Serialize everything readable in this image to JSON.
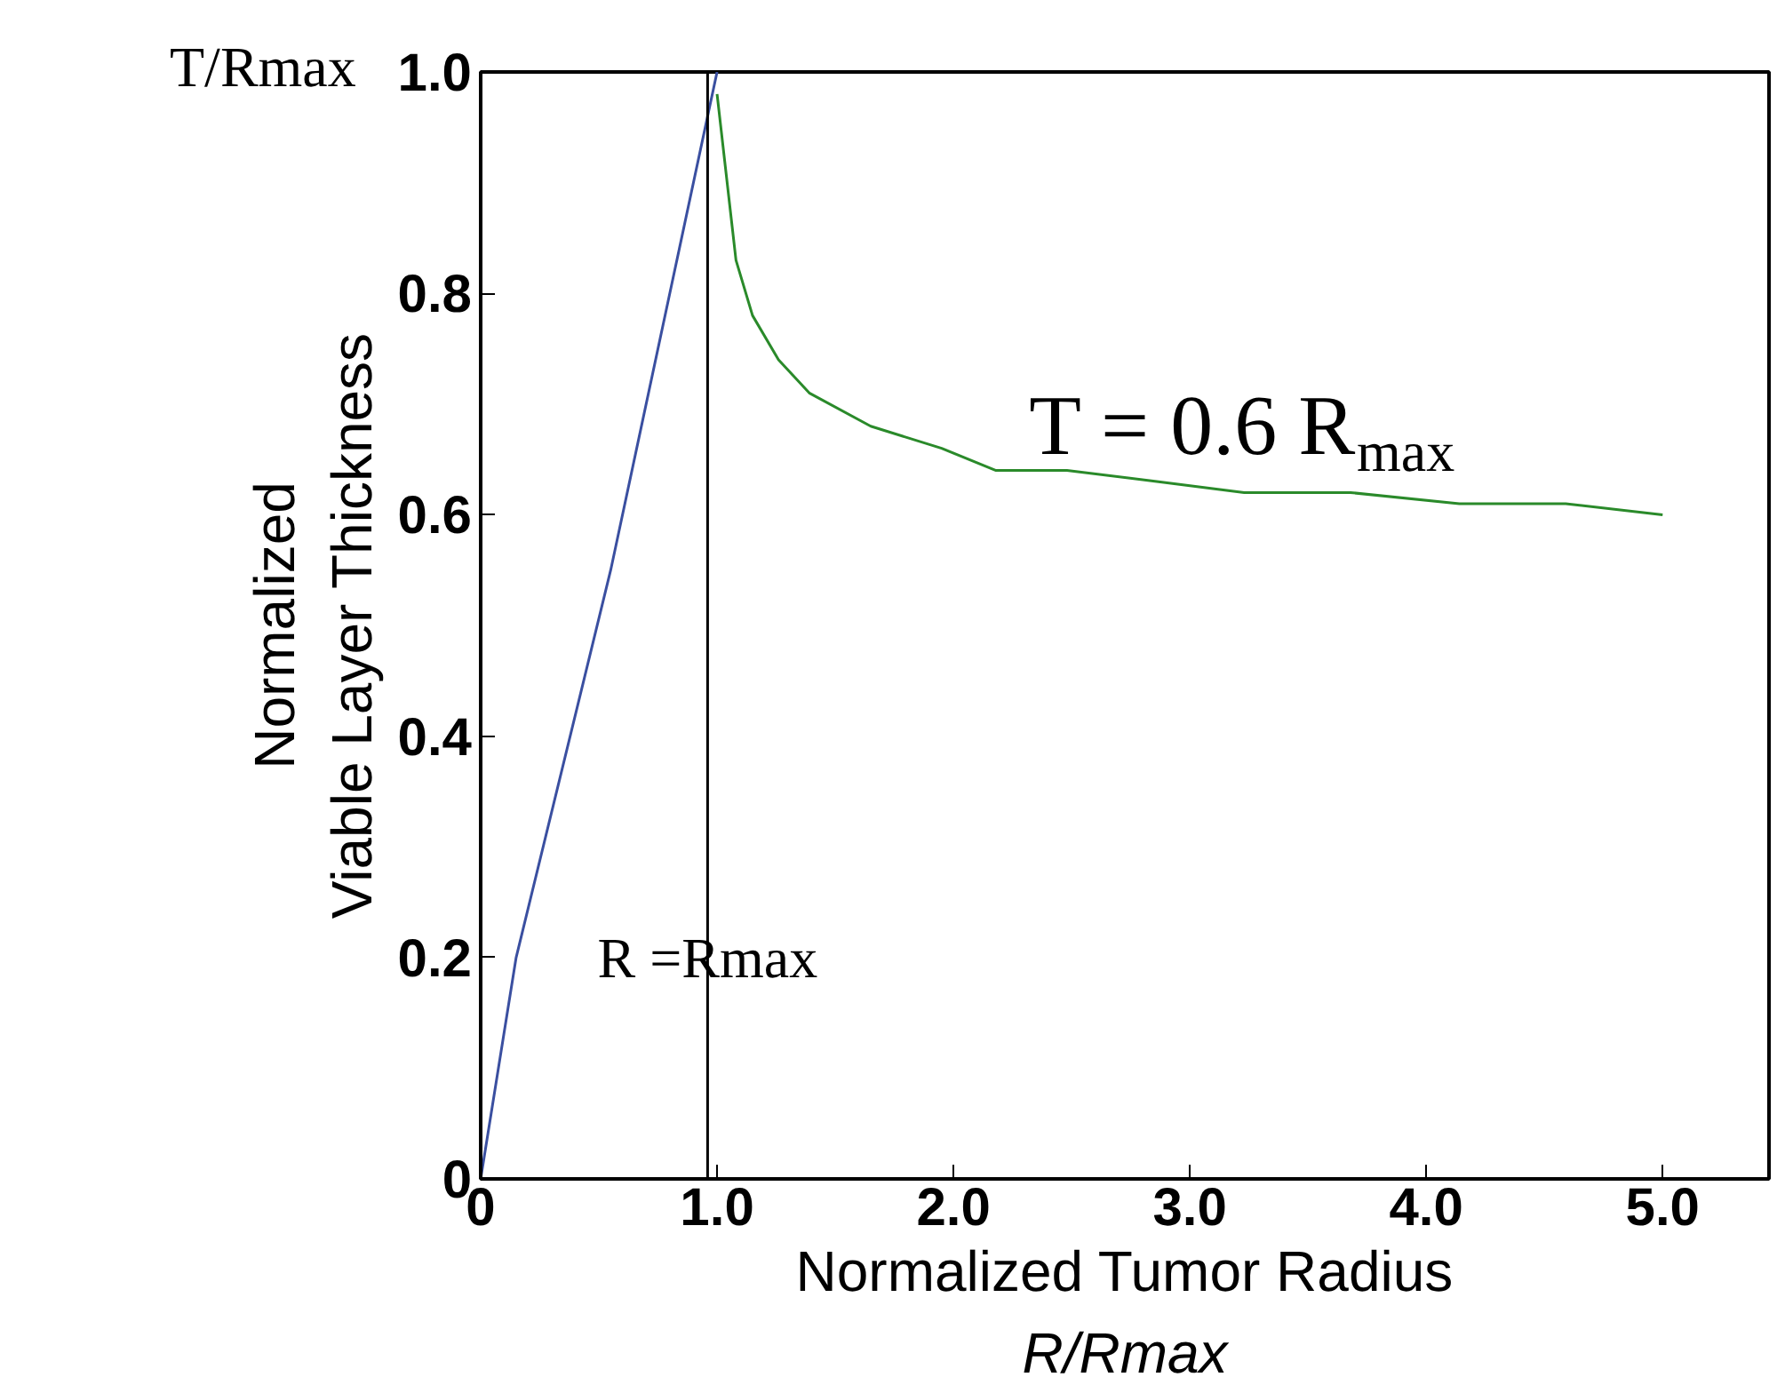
{
  "chart_data": {
    "type": "line",
    "xlabel": "Normalized Tumor Radius\nR/Rmax",
    "ylabel": "Normalized\nViable Layer Thickness",
    "annotations": [
      "T/Rmax",
      "T = 0.6 R$_{max}$"
    ],
    "series": [
      {
        "color": "#3a4fa0",
        "x": [
          0,
          0.15,
          0.55,
          1.0
        ],
        "values": [
          0,
          0.2,
          0.55,
          1.0
        ]
      },
      {
        "color": "#2a8a2a",
        "x": [
          1.0,
          1.08,
          1.15,
          1.26,
          1.39,
          1.65,
          1.95,
          2.18,
          2.48,
          2.86,
          3.23,
          3.68,
          4.14,
          4.59,
          5.0
        ],
        "values": [
          0.98,
          0.83,
          0.78,
          0.74,
          0.71,
          0.68,
          0.66,
          0.64,
          0.64,
          0.63,
          0.62,
          0.62,
          0.61,
          0.61,
          0.6
        ]
      }
    ],
    "ref_lines": [
      {
        "axis": "x",
        "value": 0.96,
        "label": "R =Rmax",
        "color": "#000000"
      }
    ],
    "xlim": [
      0,
      5.45
    ],
    "ylim": [
      0,
      1.0
    ],
    "xticks": [
      0,
      {
        "value": 1,
        "label": "1.0"
      },
      {
        "value": 2,
        "label": "2.0"
      },
      {
        "value": 3,
        "label": "3.0"
      },
      {
        "value": 4,
        "label": "4.0"
      },
      {
        "value": 5,
        "label": "5.0"
      }
    ],
    "yticks": [
      0,
      0.2,
      0.4,
      0.6,
      0.8,
      {
        "value": 1,
        "label": "1.0"
      }
    ],
    "grid": false
  }
}
